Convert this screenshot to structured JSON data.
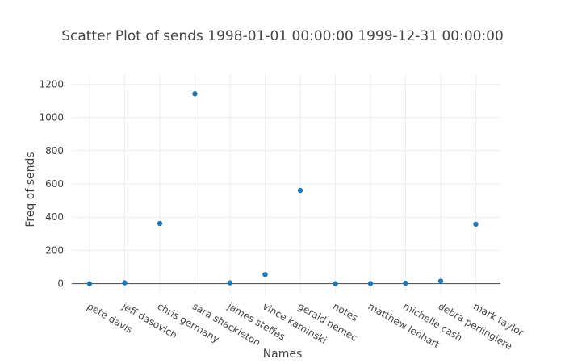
{
  "chart_data": {
    "type": "scatter",
    "title": "Scatter Plot of sends 1998-01-01 00:00:00 1999-12-31 00:00:00",
    "xlabel": "Names",
    "ylabel": "Freq of sends",
    "categories": [
      "pete davis",
      "jeff dasovich",
      "chris germany",
      "sara shackleton",
      "james steffes",
      "vince kaminski",
      "gerald nemec",
      "notes",
      "matthew lenhart",
      "michelle cash",
      "debra perlingiere",
      "mark taylor"
    ],
    "values": [
      0,
      5,
      362,
      1142,
      5,
      55,
      561,
      0,
      1,
      3,
      15,
      358
    ],
    "ylim": [
      -60,
      1260
    ],
    "yticks": [
      0,
      200,
      400,
      600,
      800,
      1000,
      1200
    ],
    "grid": true,
    "marker_color": "#1f77b4"
  }
}
